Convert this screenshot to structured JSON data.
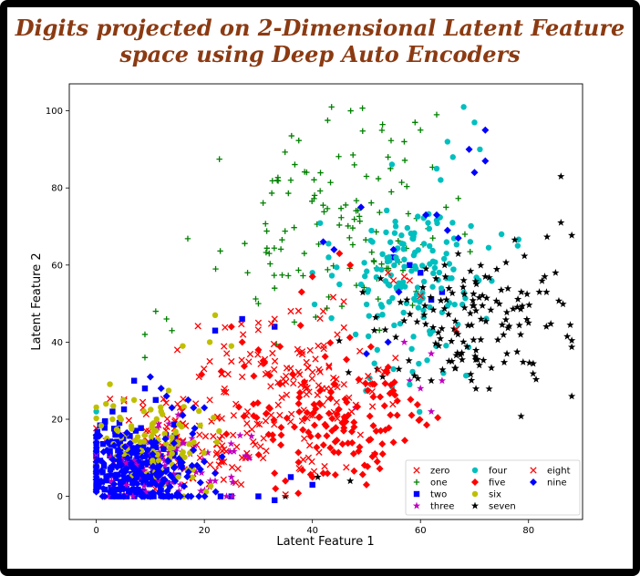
{
  "chart_data": {
    "type": "scatter",
    "title": "Digits projected on 2-Dimensional Latent Feature space using Deep Auto Encoders",
    "title_lines": [
      "Digits projected on 2-Dimensional Latent Feature",
      "space using Deep Auto Encoders"
    ],
    "xlabel": "Latent Feature 1",
    "ylabel": "Latent Feature 2",
    "xlim": [
      -5,
      90
    ],
    "ylim": [
      -6,
      107
    ],
    "xticks": [
      0,
      20,
      40,
      60,
      80
    ],
    "yticks": [
      0,
      20,
      40,
      60,
      80,
      100
    ],
    "legend_position": "lower-right",
    "legend_columns": 3,
    "series": [
      {
        "name": "zero",
        "marker": "x",
        "color": "#ff0000",
        "center": [
          18,
          14
        ],
        "spread": [
          9,
          7
        ],
        "count": 130,
        "seed": 11,
        "points": [
          [
            21,
            35
          ],
          [
            19,
            31
          ],
          [
            25,
            35
          ],
          [
            15,
            38
          ],
          [
            28,
            22
          ]
        ]
      },
      {
        "name": "one",
        "marker": "+",
        "color": "#008000",
        "center": [
          44,
          70
        ],
        "spread": [
          10,
          12
        ],
        "count": 120,
        "seed": 23,
        "points": [
          [
            9,
            42
          ],
          [
            11,
            48
          ],
          [
            13,
            46
          ],
          [
            14,
            43
          ],
          [
            9,
            36
          ],
          [
            32,
            63
          ],
          [
            30,
            50
          ],
          [
            28,
            58
          ],
          [
            36,
            82
          ],
          [
            33,
            54
          ],
          [
            59,
            97
          ],
          [
            60,
            95
          ],
          [
            63,
            99
          ],
          [
            57,
            92
          ],
          [
            54,
            88
          ],
          [
            50,
            83
          ]
        ]
      },
      {
        "name": "two",
        "marker": "s",
        "color": "#0000ff",
        "center": [
          6,
          8
        ],
        "spread": [
          4,
          6
        ],
        "count": 160,
        "seed": 37,
        "points": [
          [
            7,
            30
          ],
          [
            9,
            28
          ],
          [
            11,
            25
          ],
          [
            22,
            43
          ],
          [
            27,
            46
          ],
          [
            33,
            44
          ],
          [
            23,
            0
          ],
          [
            25,
            0
          ],
          [
            30,
            0
          ],
          [
            33,
            -1
          ],
          [
            36,
            5
          ],
          [
            40,
            3
          ],
          [
            55,
            62
          ],
          [
            58,
            60
          ],
          [
            60,
            58
          ],
          [
            62,
            51
          ],
          [
            64,
            53
          ],
          [
            3,
            22
          ],
          [
            5,
            15
          ]
        ]
      },
      {
        "name": "three",
        "marker": "*",
        "color": "#bf00bf",
        "center": [
          15,
          9
        ],
        "spread": [
          8,
          5
        ],
        "count": 80,
        "seed": 41,
        "points": [
          [
            22,
            4
          ],
          [
            25,
            5
          ],
          [
            48,
            23
          ],
          [
            62,
            22
          ],
          [
            57,
            40
          ],
          [
            62,
            37
          ],
          [
            64,
            30
          ],
          [
            58,
            30
          ],
          [
            60,
            28
          ]
        ]
      },
      {
        "name": "four",
        "marker": "o",
        "color": "#00bfbf",
        "center": [
          59,
          56
        ],
        "spread": [
          7,
          12
        ],
        "count": 160,
        "seed": 53,
        "points": [
          [
            0,
            22
          ],
          [
            68,
            101
          ],
          [
            70,
            97
          ],
          [
            65,
            92
          ],
          [
            71,
            90
          ],
          [
            78,
            65
          ],
          [
            75,
            68
          ],
          [
            63,
            85
          ],
          [
            66,
            88
          ],
          [
            40,
            58
          ],
          [
            43,
            62
          ],
          [
            45,
            55
          ],
          [
            48,
            42
          ],
          [
            52,
            38
          ],
          [
            55,
            33
          ],
          [
            58,
            29
          ]
        ]
      },
      {
        "name": "five",
        "marker": "D",
        "color": "#ff0000",
        "center": [
          43,
          22
        ],
        "spread": [
          9,
          9
        ],
        "count": 150,
        "seed": 61,
        "points": [
          [
            33,
            6
          ],
          [
            35,
            4
          ],
          [
            40,
            5
          ],
          [
            42,
            6
          ],
          [
            50,
            3
          ],
          [
            52,
            9
          ],
          [
            53,
            11
          ],
          [
            55,
            14
          ],
          [
            40,
            57
          ],
          [
            38,
            53
          ],
          [
            45,
            63
          ],
          [
            47,
            60
          ],
          [
            30,
            38
          ],
          [
            27,
            40
          ],
          [
            25,
            44
          ]
        ]
      },
      {
        "name": "six",
        "marker": "o",
        "color": "#bfbf00",
        "center": [
          12,
          14
        ],
        "spread": [
          6,
          6
        ],
        "count": 90,
        "seed": 73,
        "points": [
          [
            4,
            17
          ],
          [
            3,
            20
          ],
          [
            5,
            25
          ],
          [
            7,
            25
          ],
          [
            16,
            39
          ],
          [
            21,
            40
          ],
          [
            22,
            47
          ],
          [
            25,
            39
          ],
          [
            12,
            22
          ]
        ]
      },
      {
        "name": "seven",
        "marker": "*",
        "color": "#000000",
        "center": [
          70,
          45
        ],
        "spread": [
          9,
          9
        ],
        "count": 140,
        "seed": 83,
        "points": [
          [
            86,
            83
          ],
          [
            86,
            71
          ],
          [
            85,
            58
          ],
          [
            83,
            57
          ],
          [
            82,
            53
          ],
          [
            80,
            45
          ],
          [
            76,
            37
          ],
          [
            72,
            57
          ],
          [
            68,
            56
          ],
          [
            35,
            0
          ],
          [
            41,
            5
          ],
          [
            47,
            4
          ],
          [
            52,
            33
          ],
          [
            53,
            31
          ],
          [
            56,
            33
          ],
          [
            62,
            30
          ]
        ]
      },
      {
        "name": "eight",
        "marker": "x",
        "color": "#ff0000",
        "center": [
          36,
          30
        ],
        "spread": [
          10,
          10
        ],
        "count": 120,
        "seed": 97,
        "points": [
          [
            30,
            45
          ],
          [
            33,
            46
          ],
          [
            36,
            48
          ],
          [
            42,
            48
          ],
          [
            57,
            57
          ],
          [
            58,
            56
          ],
          [
            60,
            52
          ],
          [
            54,
            58
          ],
          [
            55,
            56
          ],
          [
            21,
            25
          ],
          [
            24,
            27
          ],
          [
            27,
            31
          ]
        ]
      },
      {
        "name": "nine",
        "marker": "D",
        "color": "#0000ff",
        "center": [
          8,
          6
        ],
        "spread": [
          6,
          5
        ],
        "count": 150,
        "seed": 101,
        "points": [
          [
            72,
            95
          ],
          [
            69,
            90
          ],
          [
            72,
            87
          ],
          [
            70,
            84
          ],
          [
            61,
            73
          ],
          [
            63,
            73
          ],
          [
            65,
            69
          ],
          [
            67,
            67
          ],
          [
            55,
            64
          ],
          [
            49,
            75
          ],
          [
            42,
            66
          ],
          [
            44,
            64
          ],
          [
            56,
            53
          ],
          [
            54,
            40
          ],
          [
            50,
            37
          ],
          [
            10,
            31
          ],
          [
            12,
            28
          ],
          [
            13,
            26
          ],
          [
            14,
            23
          ],
          [
            16,
            21
          ],
          [
            18,
            23
          ],
          [
            20,
            23
          ],
          [
            17,
            25
          ],
          [
            20,
            9
          ],
          [
            18,
            12
          ],
          [
            22,
            6
          ],
          [
            15,
            0
          ],
          [
            19,
            0
          ],
          [
            14,
            5
          ]
        ]
      }
    ]
  }
}
